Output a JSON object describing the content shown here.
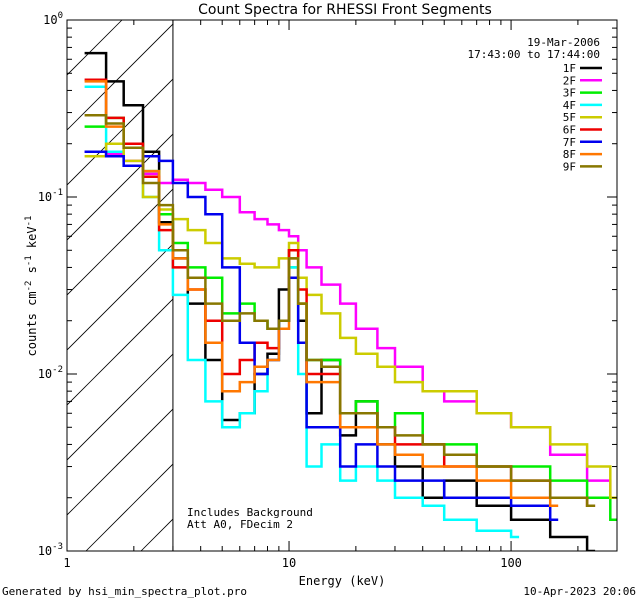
{
  "chart_data": {
    "type": "line",
    "title": "Count Spectra for RHESSI Front Segments",
    "xlabel": "Energy (keV)",
    "ylabel": "counts cm-2 s-1 keV-1",
    "xscale": "log",
    "yscale": "log",
    "xlim": [
      1,
      300
    ],
    "ylim": [
      0.001,
      1
    ],
    "x_tick_labels": [
      {
        "value": 1,
        "label": "1"
      },
      {
        "value": 10,
        "label": "10"
      },
      {
        "value": 100,
        "label": "100"
      }
    ],
    "y_tick_labels": [
      {
        "value": 1,
        "base": "10",
        "exp": "0"
      },
      {
        "value": 0.1,
        "base": "10",
        "exp": "-1"
      },
      {
        "value": 0.01,
        "base": "10",
        "exp": "-2"
      },
      {
        "value": 0.001,
        "base": "10",
        "exp": "-3"
      }
    ],
    "attenuator_threshold_kev": 3,
    "header_lines": [
      "19-Mar-2006",
      "17:43:00 to 17:44:00"
    ],
    "annotations": [
      "Includes Background",
      "Att A0, FDecim 2"
    ],
    "footer_left": "Generated by hsi_min_spectra_plot.pro",
    "footer_right": "10-Apr-2023 20:06",
    "series": [
      {
        "name": "1F",
        "color": "#000000",
        "points": [
          [
            1.2,
            0.65
          ],
          [
            1.5,
            0.45
          ],
          [
            1.8,
            0.33
          ],
          [
            2.2,
            0.18
          ],
          [
            2.6,
            0.072
          ],
          [
            3.0,
            0.045
          ],
          [
            3.5,
            0.025
          ],
          [
            4.2,
            0.012
          ],
          [
            5.0,
            0.0055
          ],
          [
            6.0,
            0.006
          ],
          [
            7.0,
            0.01
          ],
          [
            8.0,
            0.013
          ],
          [
            9.0,
            0.03
          ],
          [
            10.0,
            0.05
          ],
          [
            11.0,
            0.02
          ],
          [
            12.0,
            0.006
          ],
          [
            14.0,
            0.012
          ],
          [
            17.0,
            0.0045
          ],
          [
            20.0,
            0.007
          ],
          [
            25.0,
            0.004
          ],
          [
            30.0,
            0.003
          ],
          [
            40.0,
            0.002
          ],
          [
            50.0,
            0.0025
          ],
          [
            70.0,
            0.0018
          ],
          [
            100.0,
            0.0015
          ],
          [
            150.0,
            0.0012
          ],
          [
            220.0,
            0.001
          ]
        ]
      },
      {
        "name": "2F",
        "color": "#ff00ff",
        "points": [
          [
            1.2,
            0.18
          ],
          [
            1.5,
            0.175
          ],
          [
            1.8,
            0.16
          ],
          [
            2.2,
            0.135
          ],
          [
            2.6,
            0.12
          ],
          [
            3.0,
            0.125
          ],
          [
            3.5,
            0.12
          ],
          [
            4.2,
            0.11
          ],
          [
            5.0,
            0.1
          ],
          [
            6.0,
            0.082
          ],
          [
            7.0,
            0.075
          ],
          [
            8.0,
            0.07
          ],
          [
            9.0,
            0.065
          ],
          [
            10.0,
            0.06
          ],
          [
            11.0,
            0.05
          ],
          [
            12.0,
            0.04
          ],
          [
            14.0,
            0.032
          ],
          [
            17.0,
            0.025
          ],
          [
            20.0,
            0.018
          ],
          [
            25.0,
            0.014
          ],
          [
            30.0,
            0.011
          ],
          [
            40.0,
            0.008
          ],
          [
            50.0,
            0.007
          ],
          [
            70.0,
            0.006
          ],
          [
            100.0,
            0.005
          ],
          [
            150.0,
            0.0035
          ],
          [
            220.0,
            0.0025
          ],
          [
            280.0,
            0.002
          ]
        ]
      },
      {
        "name": "3F",
        "color": "#00ee00",
        "points": [
          [
            1.2,
            0.25
          ],
          [
            1.5,
            0.28
          ],
          [
            1.8,
            0.2
          ],
          [
            2.2,
            0.14
          ],
          [
            2.6,
            0.08
          ],
          [
            3.0,
            0.055
          ],
          [
            3.5,
            0.04
          ],
          [
            4.2,
            0.035
          ],
          [
            5.0,
            0.022
          ],
          [
            6.0,
            0.025
          ],
          [
            7.0,
            0.02
          ],
          [
            8.0,
            0.018
          ],
          [
            9.0,
            0.02
          ],
          [
            10.0,
            0.04
          ],
          [
            11.0,
            0.025
          ],
          [
            12.0,
            0.012
          ],
          [
            14.0,
            0.012
          ],
          [
            17.0,
            0.006
          ],
          [
            20.0,
            0.007
          ],
          [
            25.0,
            0.005
          ],
          [
            30.0,
            0.006
          ],
          [
            40.0,
            0.004
          ],
          [
            50.0,
            0.004
          ],
          [
            70.0,
            0.003
          ],
          [
            100.0,
            0.003
          ],
          [
            150.0,
            0.0025
          ],
          [
            220.0,
            0.002
          ],
          [
            280.0,
            0.0015
          ]
        ]
      },
      {
        "name": "4F",
        "color": "#00ffff",
        "points": [
          [
            1.2,
            0.42
          ],
          [
            1.5,
            0.18
          ],
          [
            1.8,
            0.15
          ],
          [
            2.2,
            0.1
          ],
          [
            2.6,
            0.05
          ],
          [
            3.0,
            0.028
          ],
          [
            3.5,
            0.012
          ],
          [
            4.2,
            0.007
          ],
          [
            5.0,
            0.005
          ],
          [
            6.0,
            0.006
          ],
          [
            7.0,
            0.008
          ],
          [
            8.0,
            0.012
          ],
          [
            9.0,
            0.02
          ],
          [
            10.0,
            0.04
          ],
          [
            11.0,
            0.01
          ],
          [
            12.0,
            0.003
          ],
          [
            14.0,
            0.004
          ],
          [
            17.0,
            0.0025
          ],
          [
            20.0,
            0.003
          ],
          [
            25.0,
            0.0025
          ],
          [
            30.0,
            0.002
          ],
          [
            40.0,
            0.0018
          ],
          [
            50.0,
            0.0015
          ],
          [
            70.0,
            0.0013
          ],
          [
            100.0,
            0.0012
          ]
        ]
      },
      {
        "name": "5F",
        "color": "#cccc00",
        "points": [
          [
            1.2,
            0.17
          ],
          [
            1.5,
            0.2
          ],
          [
            1.8,
            0.16
          ],
          [
            2.2,
            0.1
          ],
          [
            2.6,
            0.085
          ],
          [
            3.0,
            0.075
          ],
          [
            3.5,
            0.065
          ],
          [
            4.2,
            0.055
          ],
          [
            5.0,
            0.045
          ],
          [
            6.0,
            0.042
          ],
          [
            7.0,
            0.04
          ],
          [
            8.0,
            0.04
          ],
          [
            9.0,
            0.045
          ],
          [
            10.0,
            0.055
          ],
          [
            11.0,
            0.035
          ],
          [
            12.0,
            0.028
          ],
          [
            14.0,
            0.022
          ],
          [
            17.0,
            0.016
          ],
          [
            20.0,
            0.013
          ],
          [
            25.0,
            0.011
          ],
          [
            30.0,
            0.009
          ],
          [
            40.0,
            0.008
          ],
          [
            50.0,
            0.008
          ],
          [
            70.0,
            0.006
          ],
          [
            100.0,
            0.005
          ],
          [
            150.0,
            0.004
          ],
          [
            220.0,
            0.003
          ],
          [
            280.0,
            0.002
          ]
        ]
      },
      {
        "name": "6F",
        "color": "#ee0000",
        "points": [
          [
            1.2,
            0.46
          ],
          [
            1.5,
            0.28
          ],
          [
            1.8,
            0.2
          ],
          [
            2.2,
            0.13
          ],
          [
            2.6,
            0.065
          ],
          [
            3.0,
            0.04
          ],
          [
            3.5,
            0.03
          ],
          [
            4.2,
            0.02
          ],
          [
            5.0,
            0.01
          ],
          [
            6.0,
            0.012
          ],
          [
            7.0,
            0.015
          ],
          [
            8.0,
            0.014
          ],
          [
            9.0,
            0.02
          ],
          [
            10.0,
            0.05
          ],
          [
            11.0,
            0.03
          ],
          [
            12.0,
            0.01
          ],
          [
            14.0,
            0.01
          ],
          [
            17.0,
            0.006
          ],
          [
            20.0,
            0.006
          ],
          [
            25.0,
            0.005
          ],
          [
            30.0,
            0.004
          ],
          [
            40.0,
            0.004
          ],
          [
            50.0,
            0.003
          ],
          [
            70.0,
            0.003
          ],
          [
            100.0,
            0.0025
          ],
          [
            150.0,
            0.002
          ],
          [
            220.0,
            0.0018
          ]
        ]
      },
      {
        "name": "7F",
        "color": "#0000ee",
        "points": [
          [
            1.2,
            0.18
          ],
          [
            1.5,
            0.17
          ],
          [
            1.8,
            0.15
          ],
          [
            2.2,
            0.17
          ],
          [
            2.6,
            0.16
          ],
          [
            3.0,
            0.12
          ],
          [
            3.5,
            0.1
          ],
          [
            4.2,
            0.08
          ],
          [
            5.0,
            0.04
          ],
          [
            6.0,
            0.015
          ],
          [
            7.0,
            0.01
          ],
          [
            8.0,
            0.012
          ],
          [
            9.0,
            0.02
          ],
          [
            10.0,
            0.035
          ],
          [
            11.0,
            0.015
          ],
          [
            12.0,
            0.005
          ],
          [
            14.0,
            0.005
          ],
          [
            17.0,
            0.003
          ],
          [
            20.0,
            0.004
          ],
          [
            25.0,
            0.003
          ],
          [
            30.0,
            0.0025
          ],
          [
            40.0,
            0.0025
          ],
          [
            50.0,
            0.002
          ],
          [
            70.0,
            0.002
          ],
          [
            100.0,
            0.0018
          ],
          [
            150.0,
            0.0015
          ]
        ]
      },
      {
        "name": "8F",
        "color": "#ff7700",
        "points": [
          [
            1.2,
            0.45
          ],
          [
            1.5,
            0.25
          ],
          [
            1.8,
            0.19
          ],
          [
            2.2,
            0.14
          ],
          [
            2.6,
            0.07
          ],
          [
            3.0,
            0.045
          ],
          [
            3.5,
            0.03
          ],
          [
            4.2,
            0.015
          ],
          [
            5.0,
            0.008
          ],
          [
            6.0,
            0.009
          ],
          [
            7.0,
            0.011
          ],
          [
            8.0,
            0.012
          ],
          [
            9.0,
            0.018
          ],
          [
            10.0,
            0.045
          ],
          [
            11.0,
            0.025
          ],
          [
            12.0,
            0.009
          ],
          [
            14.0,
            0.009
          ],
          [
            17.0,
            0.005
          ],
          [
            20.0,
            0.005
          ],
          [
            25.0,
            0.004
          ],
          [
            30.0,
            0.0035
          ],
          [
            40.0,
            0.003
          ],
          [
            50.0,
            0.003
          ],
          [
            70.0,
            0.0025
          ],
          [
            100.0,
            0.002
          ],
          [
            150.0,
            0.0018
          ]
        ]
      },
      {
        "name": "9F",
        "color": "#887700",
        "points": [
          [
            1.2,
            0.29
          ],
          [
            1.5,
            0.26
          ],
          [
            1.8,
            0.19
          ],
          [
            2.2,
            0.12
          ],
          [
            2.6,
            0.09
          ],
          [
            3.0,
            0.05
          ],
          [
            3.5,
            0.035
          ],
          [
            4.2,
            0.025
          ],
          [
            5.0,
            0.02
          ],
          [
            6.0,
            0.022
          ],
          [
            7.0,
            0.02
          ],
          [
            8.0,
            0.018
          ],
          [
            9.0,
            0.02
          ],
          [
            10.0,
            0.045
          ],
          [
            11.0,
            0.025
          ],
          [
            12.0,
            0.012
          ],
          [
            14.0,
            0.011
          ],
          [
            17.0,
            0.006
          ],
          [
            20.0,
            0.006
          ],
          [
            25.0,
            0.005
          ],
          [
            30.0,
            0.0045
          ],
          [
            40.0,
            0.004
          ],
          [
            50.0,
            0.0035
          ],
          [
            70.0,
            0.003
          ],
          [
            100.0,
            0.0025
          ],
          [
            150.0,
            0.002
          ],
          [
            220.0,
            0.0018
          ]
        ]
      }
    ]
  }
}
